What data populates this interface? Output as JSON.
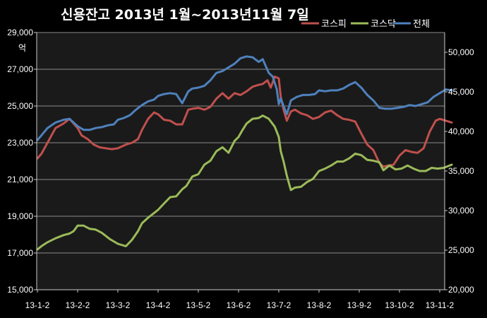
{
  "chart_data": {
    "type": "line",
    "title": "신용잔고  2013년 1월~2013년11월 7일",
    "left_axis_unit": "억",
    "categories": [
      "13-1-2",
      "13-2-2",
      "13-3-2",
      "13-4-2",
      "13-5-2",
      "13-6-2",
      "13-7-2",
      "13-8-2",
      "13-9-2",
      "13-10-2",
      "13-11-2"
    ],
    "left_axis": {
      "ylim": [
        15000,
        29000
      ],
      "ticks": [
        15000,
        17000,
        19000,
        21000,
        23000,
        25000,
        27000,
        29000
      ],
      "tick_labels": [
        "15,000",
        "17,000",
        "19,000",
        "21,000",
        "23,000",
        "25,000",
        "27,000",
        "29,000"
      ]
    },
    "right_axis": {
      "ylim": [
        20000,
        52500
      ],
      "ticks": [
        20000,
        25000,
        30000,
        35000,
        40000,
        45000,
        50000
      ],
      "tick_labels": [
        "20,000",
        "25,000",
        "30,000",
        "35,000",
        "40,000",
        "45,000",
        "50,000"
      ]
    },
    "grid": true,
    "legend_position": "top-right",
    "series": [
      {
        "name": "코스피",
        "axis": "left",
        "color": "#c0504d",
        "x": [
          0,
          0.1,
          0.25,
          0.45,
          0.65,
          0.8,
          1,
          1.1,
          1.25,
          1.4,
          1.55,
          1.7,
          1.85,
          2,
          2.2,
          2.35,
          2.5,
          2.6,
          2.75,
          2.9,
          3,
          3.15,
          3.3,
          3.45,
          3.6,
          3.75,
          3.85,
          4,
          4.15,
          4.3,
          4.45,
          4.6,
          4.75,
          4.9,
          5.05,
          5.2,
          5.35,
          5.5,
          5.6,
          5.72,
          5.8,
          5.9,
          6,
          6.05,
          6.12,
          6.2,
          6.3,
          6.4,
          6.55,
          6.7,
          6.85,
          7,
          7.15,
          7.3,
          7.45,
          7.6,
          7.75,
          7.9,
          8.05,
          8.2,
          8.35,
          8.5,
          8.6,
          8.7,
          8.85,
          9,
          9.15,
          9.3,
          9.45,
          9.6,
          9.75,
          9.9,
          10,
          10.15,
          10.3
        ],
        "values": [
          22150,
          22400,
          23000,
          23800,
          24050,
          24300,
          23800,
          23400,
          23200,
          22900,
          22750,
          22700,
          22650,
          22700,
          22900,
          23000,
          23200,
          23700,
          24300,
          24650,
          24550,
          24250,
          24200,
          24000,
          24000,
          24800,
          24850,
          24900,
          24800,
          24950,
          25400,
          25700,
          25400,
          25700,
          25600,
          25800,
          26050,
          26150,
          26200,
          26400,
          26000,
          26600,
          26500,
          25500,
          24800,
          24200,
          24700,
          24800,
          24600,
          24500,
          24300,
          24400,
          24650,
          24750,
          24500,
          24300,
          24250,
          24150,
          23500,
          22900,
          22600,
          21900,
          21700,
          21750,
          21800,
          22300,
          22600,
          22500,
          22450,
          22700,
          23600,
          24200,
          24300,
          24200,
          24100
        ]
      },
      {
        "name": "코스닥",
        "axis": "right",
        "color": "#9bbb59",
        "x": [
          0,
          0.1,
          0.25,
          0.45,
          0.65,
          0.8,
          0.9,
          1,
          1.15,
          1.3,
          1.45,
          1.6,
          1.8,
          2,
          2.2,
          2.35,
          2.5,
          2.6,
          2.75,
          2.9,
          3,
          3.15,
          3.3,
          3.45,
          3.6,
          3.7,
          3.85,
          4,
          4.15,
          4.3,
          4.45,
          4.6,
          4.75,
          4.9,
          5,
          5.1,
          5.2,
          5.35,
          5.5,
          5.6,
          5.75,
          5.9,
          6,
          6.05,
          6.12,
          6.2,
          6.3,
          6.4,
          6.55,
          6.7,
          6.85,
          7,
          7.15,
          7.3,
          7.45,
          7.6,
          7.75,
          7.9,
          8.05,
          8.2,
          8.35,
          8.5,
          8.6,
          8.75,
          8.9,
          9.05,
          9.2,
          9.35,
          9.5,
          9.65,
          9.8,
          9.95,
          10.1,
          10.3
        ],
        "values": [
          25100,
          25500,
          26000,
          26500,
          26900,
          27100,
          27400,
          28100,
          28100,
          27700,
          27600,
          27200,
          26400,
          25800,
          25500,
          26300,
          27400,
          28400,
          29100,
          29700,
          30100,
          30900,
          31700,
          31800,
          32700,
          33100,
          34300,
          34600,
          35800,
          36300,
          37500,
          38000,
          37300,
          38800,
          39300,
          40200,
          41000,
          41600,
          41700,
          42000,
          41600,
          40600,
          39300,
          37500,
          36200,
          34400,
          32600,
          32900,
          33000,
          33600,
          34000,
          35000,
          35300,
          35700,
          36200,
          36200,
          36600,
          37200,
          37000,
          36400,
          36300,
          36100,
          35100,
          35700,
          35200,
          35300,
          35700,
          35300,
          35000,
          35000,
          35400,
          35300,
          35400,
          35800
        ]
      },
      {
        "name": "전체",
        "axis": "left",
        "color": "#4f81bd",
        "x": [
          0,
          0.1,
          0.25,
          0.45,
          0.65,
          0.8,
          1,
          1.15,
          1.3,
          1.45,
          1.6,
          1.75,
          1.9,
          2,
          2.15,
          2.3,
          2.45,
          2.6,
          2.75,
          2.9,
          3,
          3.15,
          3.3,
          3.45,
          3.6,
          3.75,
          3.85,
          4,
          4.15,
          4.3,
          4.45,
          4.6,
          4.75,
          4.9,
          5.05,
          5.2,
          5.35,
          5.5,
          5.6,
          5.75,
          5.85,
          5.95,
          6,
          6.05,
          6.12,
          6.2,
          6.3,
          6.45,
          6.6,
          6.75,
          6.9,
          7,
          7.15,
          7.3,
          7.45,
          7.6,
          7.75,
          7.9,
          8.05,
          8.2,
          8.35,
          8.5,
          8.65,
          8.8,
          8.95,
          9.1,
          9.25,
          9.4,
          9.55,
          9.7,
          9.85,
          10,
          10.15,
          10.3
        ],
        "values": [
          23150,
          23400,
          23800,
          24100,
          24250,
          24300,
          23900,
          23700,
          23700,
          23800,
          23850,
          23950,
          24000,
          24250,
          24350,
          24500,
          24800,
          25050,
          25250,
          25350,
          25550,
          25650,
          25700,
          25650,
          25150,
          25800,
          25950,
          26000,
          26100,
          26400,
          26800,
          26900,
          27100,
          27300,
          27600,
          27700,
          27650,
          27400,
          27550,
          26800,
          26600,
          25900,
          25100,
          25400,
          25000,
          24550,
          25300,
          25500,
          25600,
          25600,
          25650,
          25850,
          25800,
          25850,
          25850,
          25950,
          26150,
          26300,
          26000,
          25600,
          25300,
          24900,
          24850,
          24850,
          24900,
          24950,
          25050,
          25000,
          25100,
          25200,
          25500,
          25700,
          25900,
          25850
        ]
      }
    ]
  }
}
